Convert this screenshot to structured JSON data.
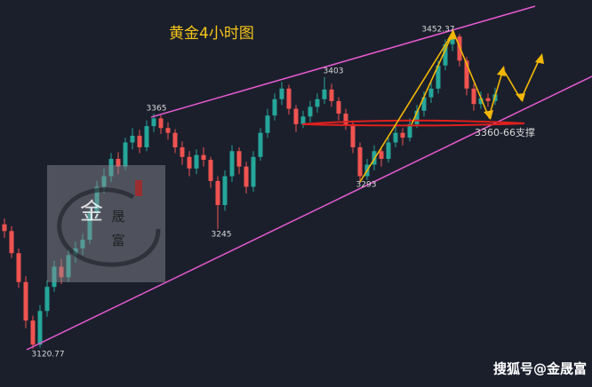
{
  "chart_data": {
    "type": "candlestick",
    "title": "黄金4小时图",
    "ylim": [
      3081,
      3483
    ],
    "up_color": "#26a69a",
    "down_color": "#ef5350",
    "open": [
      3250,
      3243,
      3220,
      3190,
      3150,
      3125,
      3160,
      3185,
      3206,
      3195,
      3218,
      3225,
      3234,
      3262,
      3289,
      3300,
      3318,
      3310,
      3335,
      3342,
      3330,
      3352,
      3360,
      3350,
      3345,
      3330,
      3320,
      3308,
      3322,
      3317,
      3295,
      3270,
      3300,
      3326,
      3310,
      3289,
      3320,
      3345,
      3363,
      3380,
      3391,
      3370,
      3354,
      3362,
      3372,
      3380,
      3390,
      3378,
      3365,
      3354,
      3330,
      3300,
      3312,
      3326,
      3318,
      3335,
      3345,
      3340,
      3354,
      3368,
      3382,
      3391,
      3415,
      3437,
      3445,
      3420,
      3391,
      3375,
      3381,
      3378
    ],
    "high": [
      3256,
      3248,
      3225,
      3196,
      3155,
      3166,
      3192,
      3212,
      3214,
      3224,
      3232,
      3240,
      3268,
      3295,
      3308,
      3324,
      3325,
      3340,
      3350,
      3348,
      3358,
      3365,
      3363,
      3356,
      3349,
      3336,
      3326,
      3328,
      3330,
      3320,
      3300,
      3306,
      3332,
      3330,
      3315,
      3326,
      3350,
      3370,
      3386,
      3398,
      3395,
      3374,
      3368,
      3378,
      3386,
      3403,
      3396,
      3382,
      3370,
      3358,
      3335,
      3318,
      3332,
      3330,
      3340,
      3352,
      3350,
      3360,
      3374,
      3388,
      3398,
      3420,
      3442,
      3452.37,
      3448,
      3424,
      3396,
      3388,
      3386,
      3392
    ],
    "low": [
      3236,
      3215,
      3184,
      3142,
      3120.77,
      3122,
      3154,
      3180,
      3188,
      3190,
      3210,
      3218,
      3230,
      3256,
      3282,
      3294,
      3302,
      3306,
      3328,
      3324,
      3326,
      3346,
      3344,
      3338,
      3324,
      3312,
      3300,
      3302,
      3310,
      3288,
      3245,
      3264,
      3294,
      3302,
      3282,
      3284,
      3316,
      3340,
      3358,
      3374,
      3364,
      3346,
      3350,
      3356,
      3366,
      3375,
      3372,
      3358,
      3348,
      3324,
      3293,
      3296,
      3306,
      3310,
      3314,
      3330,
      3332,
      3336,
      3350,
      3362,
      3376,
      3386,
      3410,
      3430,
      3414,
      3384,
      3368,
      3370,
      3372,
      3374
    ],
    "close": [
      3243,
      3220,
      3190,
      3150,
      3125,
      3160,
      3185,
      3206,
      3195,
      3218,
      3225,
      3234,
      3262,
      3289,
      3300,
      3318,
      3310,
      3335,
      3342,
      3330,
      3352,
      3360,
      3350,
      3345,
      3330,
      3320,
      3308,
      3322,
      3317,
      3295,
      3270,
      3300,
      3326,
      3310,
      3289,
      3320,
      3345,
      3363,
      3380,
      3391,
      3370,
      3354,
      3362,
      3372,
      3380,
      3390,
      3378,
      3365,
      3354,
      3330,
      3300,
      3312,
      3326,
      3318,
      3335,
      3345,
      3340,
      3354,
      3368,
      3382,
      3391,
      3415,
      3437,
      3445,
      3420,
      3391,
      3375,
      3381,
      3378,
      3385
    ],
    "annotations": [
      "3365",
      "3403",
      "3452.37",
      "3245",
      "3293",
      "3120.77",
      "3360-66支撑"
    ]
  },
  "logo": {
    "chars": [
      "金",
      "晟",
      "富"
    ]
  },
  "watermark": "搜狐号@金晟富"
}
